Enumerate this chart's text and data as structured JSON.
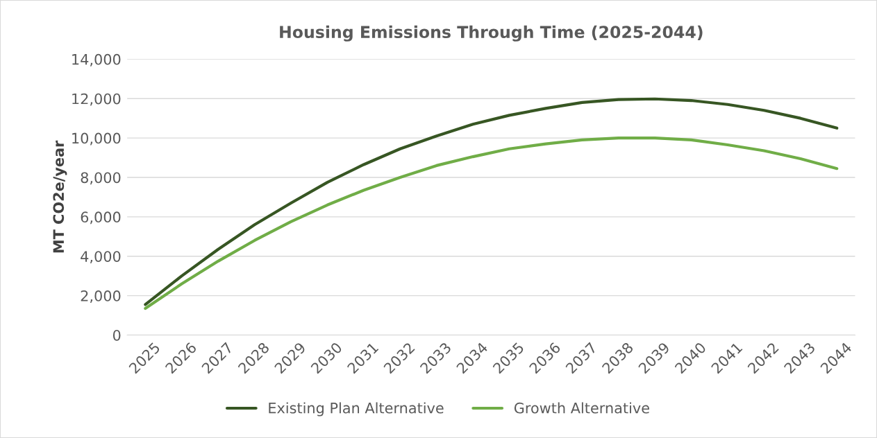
{
  "chart_data": {
    "type": "line",
    "title": "Housing Emissions Through Time (2025-2044)",
    "ylabel": "MT CO2e/year",
    "categories": [
      "2025",
      "2026",
      "2027",
      "2028",
      "2029",
      "2030",
      "2031",
      "2032",
      "2033",
      "2034",
      "2035",
      "2036",
      "2037",
      "2038",
      "2039",
      "2040",
      "2041",
      "2042",
      "2043",
      "2044"
    ],
    "series": [
      {
        "name": "Existing Plan Alternative",
        "color": "#375623",
        "values": [
          1550,
          3000,
          4350,
          5600,
          6700,
          7750,
          8650,
          9450,
          10100,
          10700,
          11150,
          11500,
          11800,
          11950,
          11980,
          11900,
          11700,
          11400,
          11000,
          10500
        ]
      },
      {
        "name": "Growth Alternative",
        "color": "#70ad47",
        "values": [
          1350,
          2600,
          3750,
          4800,
          5750,
          6600,
          7350,
          8000,
          8600,
          9050,
          9450,
          9700,
          9900,
          10000,
          10000,
          9900,
          9650,
          9350,
          8950,
          8450
        ]
      }
    ],
    "ylim": [
      0,
      14000
    ],
    "yticks": [
      {
        "value": 0,
        "label": "0"
      },
      {
        "value": 2000,
        "label": "2,000"
      },
      {
        "value": 4000,
        "label": "4,000"
      },
      {
        "value": 6000,
        "label": "6,000"
      },
      {
        "value": 8000,
        "label": "8,000"
      },
      {
        "value": 10000,
        "label": "10,000"
      },
      {
        "value": 12000,
        "label": "12,000"
      },
      {
        "value": 14000,
        "label": "14,000"
      }
    ],
    "grid": "y",
    "legend": "bottom",
    "marker": "none",
    "line_style": "solid"
  }
}
